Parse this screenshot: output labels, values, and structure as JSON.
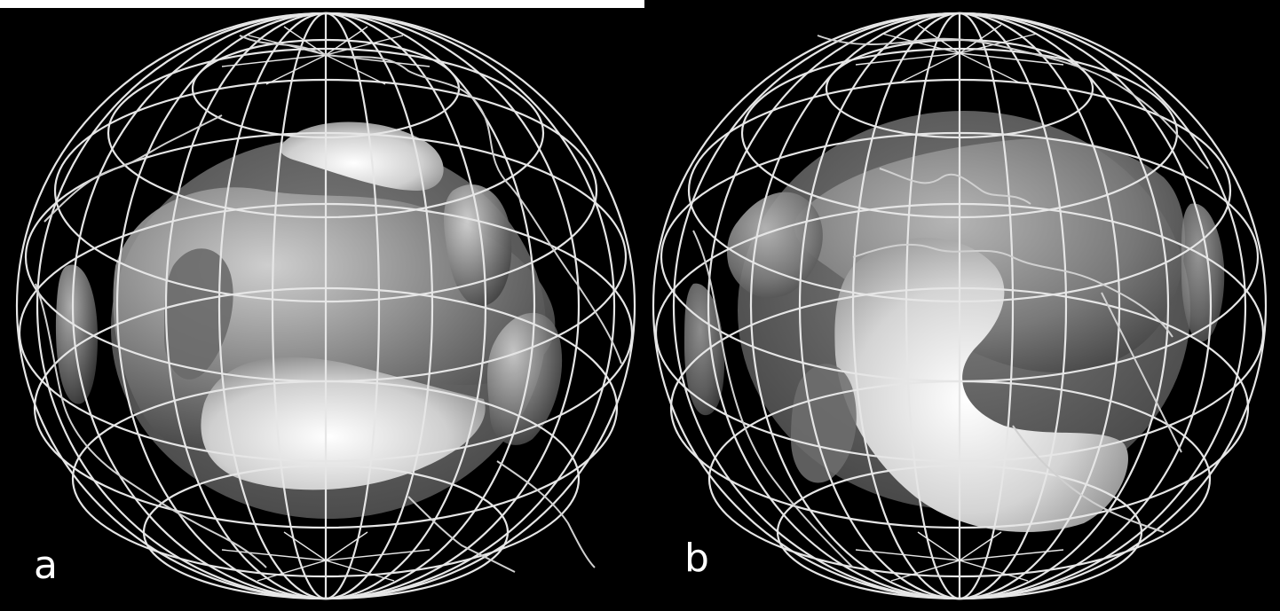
{
  "figure": {
    "panels": [
      {
        "id": "a",
        "label": "a"
      },
      {
        "id": "b",
        "label": "b"
      }
    ]
  },
  "colors": {
    "background": "#000000",
    "grid_lines": "#e6e6e6",
    "surface_light": "#f2f2f2",
    "surface_dark": "#5a5a5a"
  },
  "icons": [
    "wireframe-globe-icon",
    "coastline-icon"
  ]
}
